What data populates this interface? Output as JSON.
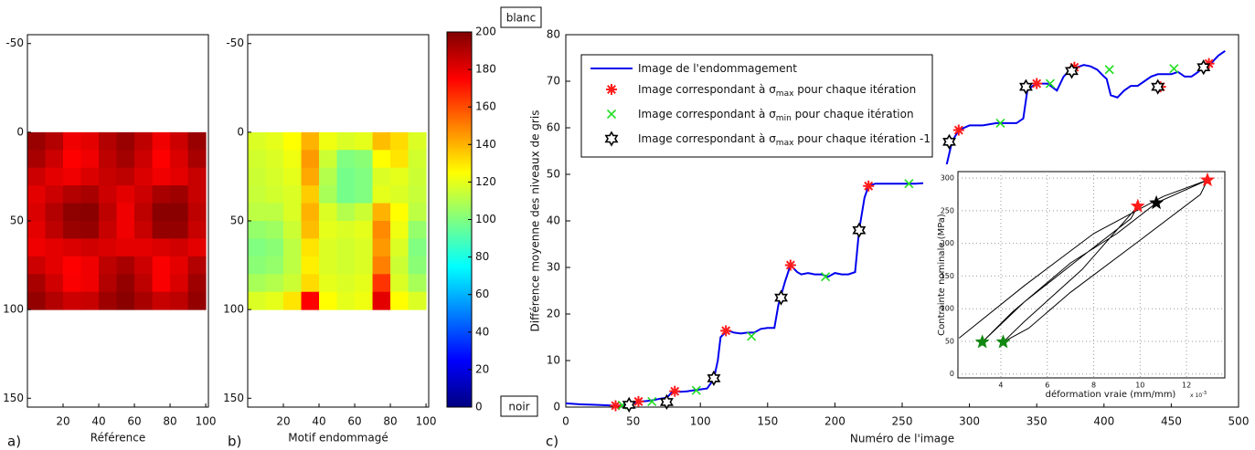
{
  "heatmaps": [
    {
      "label": "a)",
      "xlabel": "Référence",
      "xlim": [
        0,
        101.5
      ],
      "ylim": [
        -55,
        155
      ],
      "xticks": [
        20,
        40,
        60,
        80,
        100
      ],
      "yticks": [
        -50,
        0,
        50,
        100,
        150
      ],
      "extent": [
        0,
        100
      ],
      "values": [
        [
          195,
          190,
          178,
          180,
          190,
          195,
          188,
          178,
          185,
          195
        ],
        [
          192,
          185,
          175,
          178,
          188,
          193,
          185,
          175,
          182,
          192
        ],
        [
          185,
          180,
          178,
          182,
          186,
          188,
          182,
          178,
          180,
          186
        ],
        [
          180,
          185,
          190,
          192,
          185,
          180,
          185,
          192,
          194,
          186
        ],
        [
          182,
          190,
          197,
          198,
          188,
          178,
          188,
          198,
          198,
          188
        ],
        [
          180,
          188,
          195,
          196,
          186,
          178,
          186,
          196,
          196,
          186
        ],
        [
          178,
          180,
          182,
          184,
          182,
          180,
          180,
          182,
          184,
          180
        ],
        [
          185,
          180,
          175,
          178,
          188,
          192,
          185,
          176,
          180,
          190
        ],
        [
          192,
          184,
          176,
          178,
          190,
          196,
          188,
          176,
          182,
          194
        ],
        [
          196,
          190,
          185,
          186,
          194,
          198,
          192,
          186,
          188,
          196
        ]
      ]
    },
    {
      "label": "b)",
      "xlabel": "Motif endommagé",
      "xlim": [
        0,
        101.5
      ],
      "ylim": [
        -55,
        155
      ],
      "xticks": [
        20,
        40,
        60,
        80,
        100
      ],
      "yticks": [
        -50,
        0,
        50,
        100,
        150
      ],
      "extent": [
        0,
        100
      ],
      "values": [
        [
          118,
          120,
          125,
          140,
          122,
          118,
          120,
          138,
          132,
          118
        ],
        [
          116,
          118,
          122,
          145,
          115,
          100,
          102,
          125,
          130,
          116
        ],
        [
          115,
          117,
          120,
          142,
          110,
          98,
          100,
          118,
          120,
          115
        ],
        [
          114,
          116,
          118,
          135,
          108,
          98,
          100,
          120,
          118,
          114
        ],
        [
          112,
          112,
          118,
          140,
          118,
          110,
          115,
          140,
          125,
          112
        ],
        [
          104,
          106,
          115,
          138,
          120,
          118,
          120,
          148,
          122,
          104
        ],
        [
          100,
          102,
          112,
          130,
          118,
          116,
          118,
          145,
          118,
          100
        ],
        [
          102,
          104,
          112,
          128,
          118,
          116,
          118,
          150,
          115,
          102
        ],
        [
          108,
          110,
          115,
          132,
          120,
          118,
          120,
          165,
          118,
          108
        ],
        [
          118,
          120,
          130,
          175,
          125,
          120,
          122,
          180,
          125,
          118
        ]
      ]
    }
  ],
  "colorbar": {
    "colormap": "jet",
    "lim": [
      0,
      200
    ],
    "ticks": [
      0,
      20,
      40,
      60,
      80,
      100,
      120,
      140,
      160,
      180,
      200
    ],
    "top_label": "blanc",
    "bottom_label": "noir"
  },
  "chart_data": {
    "type": "line",
    "label": "c)",
    "xlabel": "Numéro de l'image",
    "ylabel": "Différence moyenne des niveaux de gris",
    "xlim": [
      0,
      500
    ],
    "ylim": [
      0,
      80
    ],
    "xticks": [
      0,
      50,
      100,
      150,
      200,
      250,
      300,
      350,
      400,
      450,
      500
    ],
    "yticks": [
      0,
      10,
      20,
      30,
      40,
      50,
      60,
      70,
      80
    ],
    "series": [
      {
        "name": [
          "Image de l'endommagement"
        ],
        "marker": "line",
        "color": "#0000ee",
        "x": [
          0,
          10,
          20,
          30,
          38,
          45,
          50,
          55,
          60,
          65,
          70,
          75,
          80,
          85,
          90,
          95,
          100,
          105,
          110,
          113,
          115,
          120,
          125,
          130,
          135,
          140,
          145,
          150,
          155,
          158,
          160,
          163,
          167,
          172,
          175,
          180,
          185,
          190,
          195,
          200,
          205,
          210,
          215,
          218,
          222,
          225,
          230,
          240,
          250,
          260,
          270,
          280,
          283,
          287,
          292,
          300,
          310,
          320,
          330,
          335,
          340,
          343,
          347,
          352,
          358,
          365,
          370,
          375,
          380,
          385,
          390,
          395,
          400,
          402,
          405,
          410,
          415,
          420,
          425,
          430,
          435,
          440,
          445,
          450,
          455,
          460,
          465,
          470,
          475,
          480,
          485,
          490
        ],
        "y": [
          0.8,
          0.6,
          0.5,
          0.4,
          0.3,
          0.5,
          0.8,
          1.2,
          1.3,
          1.5,
          1.8,
          2,
          3.5,
          3.3,
          3.4,
          3.6,
          3.8,
          4,
          6,
          10,
          15,
          16.5,
          16,
          15.8,
          16,
          16,
          16.8,
          17,
          17,
          22,
          24,
          27,
          30.5,
          29,
          28.5,
          28.8,
          28.5,
          28.5,
          28,
          28.8,
          28.5,
          28.5,
          29,
          38,
          45,
          47.5,
          48,
          48,
          48,
          48,
          48.2,
          48.5,
          52,
          57,
          59.5,
          60.5,
          60.5,
          61,
          61,
          61,
          62,
          68,
          69,
          69.5,
          69.5,
          68,
          71,
          72.5,
          73,
          73.5,
          73.2,
          72.5,
          71,
          70.5,
          67,
          66.5,
          68,
          69,
          69,
          70,
          71,
          71.5,
          71.5,
          71.5,
          72,
          71,
          71,
          72,
          73.5,
          74,
          75.5,
          76.5
        ]
      },
      {
        "name": [
          "Image correspondant à σ",
          "max",
          " pour chaque itération"
        ],
        "marker": "asterisk",
        "color": "#ff1a1a",
        "x": [
          37,
          54,
          81,
          119,
          167,
          225,
          292,
          350,
          378,
          442,
          478
        ],
        "y": [
          0.3,
          1.2,
          3.4,
          16.4,
          30.5,
          47.5,
          59.5,
          69.5,
          73,
          68.8,
          73.8
        ]
      },
      {
        "name": [
          "Image correspondant à σ",
          "min",
          " pour chaque itération"
        ],
        "marker": "x",
        "color": "#22dd22",
        "x": [
          42,
          64,
          97,
          138,
          193,
          255,
          323,
          360,
          404,
          452
        ],
        "y": [
          0.4,
          1.2,
          3.6,
          15.2,
          28,
          48,
          61,
          69.5,
          72.5,
          72.7
        ]
      },
      {
        "name": [
          "Image correspondant à σ",
          "max",
          " pour chaque itération -1"
        ],
        "marker": "hexagram",
        "color": "#000000",
        "x": [
          47,
          75,
          110,
          160,
          218,
          285,
          342,
          376,
          440,
          474
        ],
        "y": [
          0.5,
          1.1,
          6.2,
          23.5,
          38,
          57,
          68.8,
          72.2,
          68.8,
          73
        ]
      }
    ],
    "inset": {
      "xlabel": "déformation vraie (mm/mm)",
      "ylabel": "Contrainte nominale (MPa)",
      "xscale_label": [
        "x 10",
        "-3"
      ],
      "xlim": [
        2.15,
        13.65
      ],
      "ylim": [
        -6,
        310
      ],
      "xticks": [
        4,
        6,
        8,
        10,
        12
      ],
      "yticks": [
        0,
        50,
        100,
        150,
        200,
        250,
        300
      ],
      "grid": true,
      "series": [
        {
          "marker": "line",
          "color": "#000000",
          "x": [
            2.2,
            5,
            8,
            11,
            12.9,
            12.6,
            10,
            7,
            5.2,
            4.1,
            5,
            7.5,
            9.9,
            9.6,
            7.5,
            5,
            3.2,
            4.5,
            7,
            9,
            10.7,
            12.9
          ],
          "y": [
            55,
            135,
            215,
            272,
            297,
            275,
            205,
            125,
            70,
            49,
            80,
            160,
            257,
            238,
            180,
            110,
            49,
            95,
            170,
            215,
            262,
            297
          ]
        },
        {
          "marker": "star",
          "color": "#ff1a1a",
          "x": [
            9.9,
            12.9
          ],
          "y": [
            257,
            297
          ]
        },
        {
          "marker": "star",
          "color": "#000000",
          "x": [
            10.7
          ],
          "y": [
            262
          ]
        },
        {
          "marker": "star",
          "color": "#118811",
          "x": [
            3.2,
            4.1
          ],
          "y": [
            49,
            49
          ]
        }
      ]
    }
  }
}
